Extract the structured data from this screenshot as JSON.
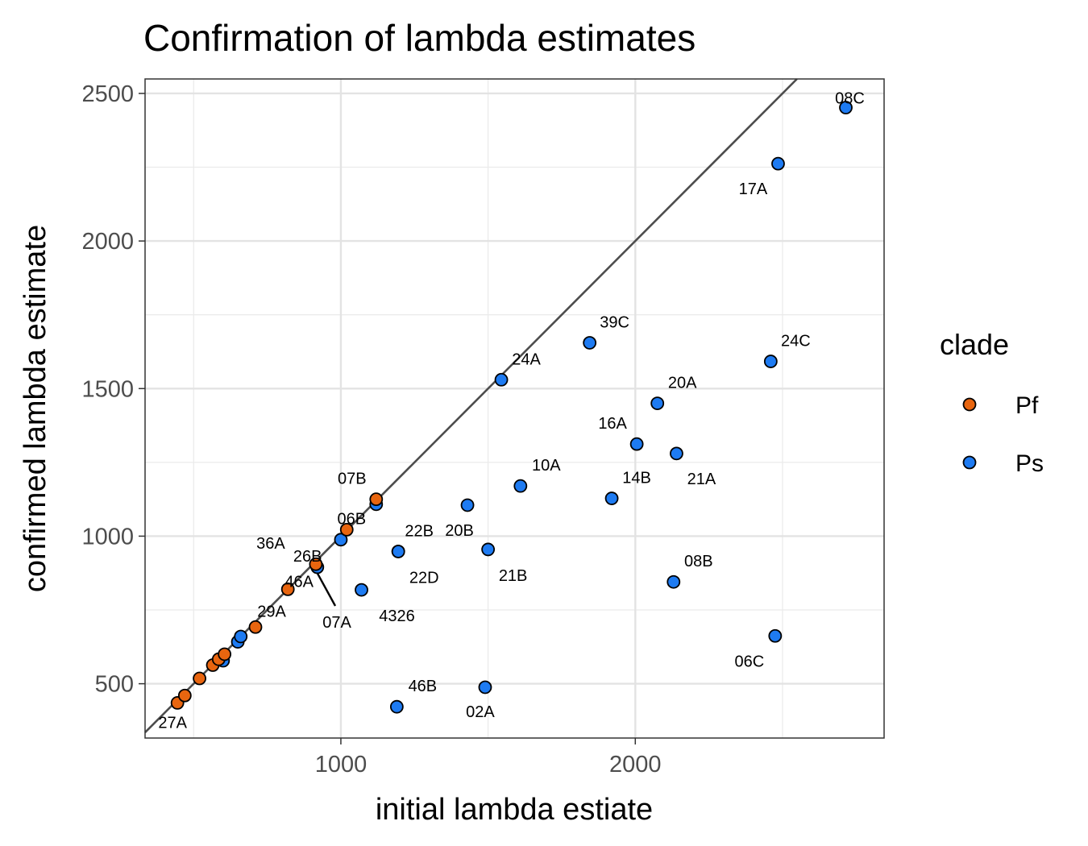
{
  "chart_data": {
    "type": "scatter",
    "title": "Confirmation of lambda estimates",
    "xlabel": "initial lambda estiate",
    "ylabel": "confirmed lambda estimate",
    "xlim": [
      335,
      2845
    ],
    "ylim": [
      316,
      2549
    ],
    "x_ticks": [
      1000,
      2000
    ],
    "y_ticks": [
      500,
      1000,
      1500,
      2000,
      2500
    ],
    "grid": true,
    "reference_line": "y = x",
    "legend": {
      "title": "clade",
      "position": "right",
      "entries": [
        {
          "name": "Pf",
          "color": "#e8650f"
        },
        {
          "name": "Ps",
          "color": "#1e7bf2"
        }
      ]
    },
    "series": [
      {
        "name": "Pf",
        "color": "#e8650f",
        "points": [
          {
            "x": 445,
            "y": 435,
            "label": "27A"
          },
          {
            "x": 470,
            "y": 460,
            "label": ""
          },
          {
            "x": 520,
            "y": 518,
            "label": ""
          },
          {
            "x": 565,
            "y": 563,
            "label": ""
          },
          {
            "x": 585,
            "y": 583,
            "label": ""
          },
          {
            "x": 605,
            "y": 600,
            "label": ""
          },
          {
            "x": 710,
            "y": 692,
            "label": "29A"
          },
          {
            "x": 820,
            "y": 820,
            "label": "46A"
          },
          {
            "x": 915,
            "y": 905,
            "label": "36A"
          },
          {
            "x": 1020,
            "y": 1022,
            "label": "06B"
          },
          {
            "x": 1120,
            "y": 1125,
            "label": "07B"
          }
        ]
      },
      {
        "name": "Ps",
        "color": "#1e7bf2",
        "points": [
          {
            "x": 600,
            "y": 578,
            "label": ""
          },
          {
            "x": 650,
            "y": 642,
            "label": ""
          },
          {
            "x": 660,
            "y": 660,
            "label": ""
          },
          {
            "x": 920,
            "y": 895,
            "label": "26B"
          },
          {
            "x": 920,
            "y": 895,
            "label": "07A"
          },
          {
            "x": 1000,
            "y": 988,
            "label": ""
          },
          {
            "x": 1070,
            "y": 818,
            "label": "4326"
          },
          {
            "x": 1120,
            "y": 1108,
            "label": ""
          },
          {
            "x": 1190,
            "y": 422,
            "label": "46B"
          },
          {
            "x": 1195,
            "y": 948,
            "label": "22B"
          },
          {
            "x": 1195,
            "y": 948,
            "label": "22D"
          },
          {
            "x": 1430,
            "y": 1105,
            "label": "20B"
          },
          {
            "x": 1490,
            "y": 488,
            "label": "02A"
          },
          {
            "x": 1500,
            "y": 955,
            "label": "21B"
          },
          {
            "x": 1545,
            "y": 1530,
            "label": "24A"
          },
          {
            "x": 1610,
            "y": 1170,
            "label": "10A"
          },
          {
            "x": 1845,
            "y": 1655,
            "label": "39C"
          },
          {
            "x": 1920,
            "y": 1128,
            "label": "14B"
          },
          {
            "x": 2005,
            "y": 1312,
            "label": "16A"
          },
          {
            "x": 2075,
            "y": 1450,
            "label": "20A"
          },
          {
            "x": 2130,
            "y": 845,
            "label": "08B"
          },
          {
            "x": 2140,
            "y": 1280,
            "label": "21A"
          },
          {
            "x": 2460,
            "y": 1592,
            "label": "24C"
          },
          {
            "x": 2475,
            "y": 662,
            "label": "06C"
          },
          {
            "x": 2485,
            "y": 2262,
            "label": "17A"
          },
          {
            "x": 2715,
            "y": 2452,
            "label": "08C"
          }
        ]
      }
    ]
  }
}
